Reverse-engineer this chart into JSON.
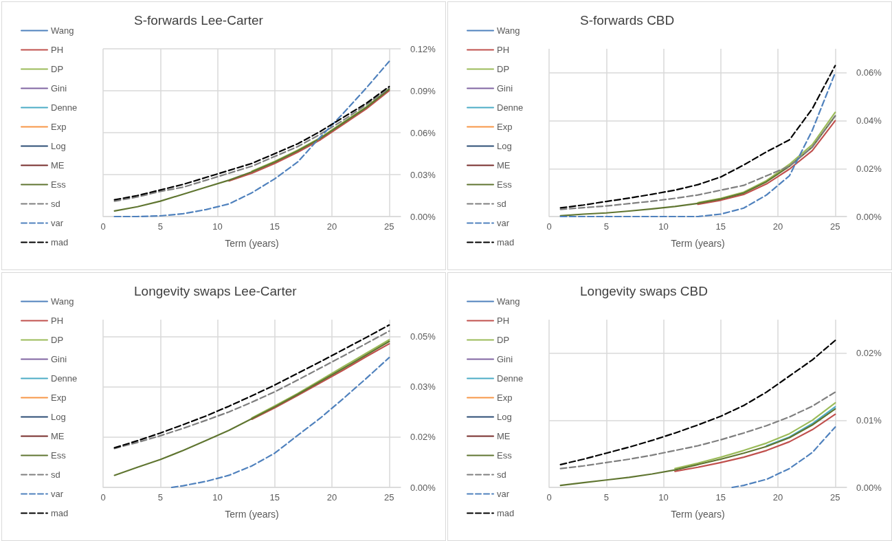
{
  "chart_data": [
    {
      "type": "line",
      "title": "S-forwards Lee-Carter",
      "xlabel": "Term (years)",
      "x": [
        1,
        3,
        5,
        7,
        9,
        11,
        13,
        15,
        17,
        19,
        21,
        23,
        25
      ],
      "xlim": [
        0,
        26
      ],
      "xticks": [
        0,
        5,
        10,
        15,
        20,
        25
      ],
      "ylim": [
        0,
        0.12
      ],
      "yticks": [
        {
          "value": 0,
          "label": "0.00%"
        },
        {
          "value": 0.03,
          "label": "0.03%"
        },
        {
          "value": 0.06,
          "label": "0.06%"
        },
        {
          "value": 0.09,
          "label": "0.09%"
        },
        {
          "value": 0.12,
          "label": "0.12%"
        }
      ],
      "grid": true,
      "legend": "left",
      "marker": "none",
      "line_style": "solid",
      "series": [
        {
          "name": "Wang",
          "color": "#4f81bd",
          "values": [
            null,
            null,
            null,
            null,
            null,
            null,
            null,
            null,
            null,
            null,
            null,
            null,
            null
          ]
        },
        {
          "name": "PH",
          "color": "#c0504d",
          "values": [
            null,
            null,
            null,
            null,
            null,
            0.0255,
            0.031,
            0.038,
            0.046,
            0.055,
            0.066,
            0.077,
            0.09
          ]
        },
        {
          "name": "DP",
          "color": "#9bbb59",
          "values": [
            null,
            null,
            null,
            null,
            null,
            null,
            0.0325,
            0.0395,
            0.0475,
            0.0565,
            0.0675,
            0.0785,
            0.0915
          ]
        },
        {
          "name": "Gini",
          "color": "#8064a2",
          "values": [
            null,
            null,
            null,
            null,
            null,
            null,
            null,
            null,
            null,
            null,
            null,
            null,
            null
          ]
        },
        {
          "name": "Denne",
          "color": "#4bacc6",
          "values": [
            null,
            null,
            null,
            null,
            null,
            null,
            null,
            null,
            null,
            null,
            null,
            null,
            null
          ]
        },
        {
          "name": "Exp",
          "color": "#f79646",
          "values": [
            null,
            null,
            null,
            null,
            null,
            null,
            null,
            null,
            null,
            null,
            null,
            null,
            null
          ]
        },
        {
          "name": "Log",
          "color": "#2c4d75",
          "values": [
            null,
            null,
            null,
            null,
            null,
            null,
            null,
            null,
            null,
            null,
            null,
            null,
            null
          ]
        },
        {
          "name": "ME",
          "color": "#772c2a",
          "values": [
            null,
            null,
            null,
            null,
            null,
            null,
            null,
            null,
            null,
            null,
            null,
            null,
            null
          ]
        },
        {
          "name": "Ess",
          "color": "#5f7530",
          "values": [
            0.004,
            0.007,
            0.011,
            0.016,
            0.021,
            0.026,
            0.032,
            0.039,
            0.047,
            0.056,
            0.067,
            0.078,
            0.091
          ]
        },
        {
          "name": "sd",
          "color": "#7f7f7f",
          "line_style": "dashed",
          "values": [
            0.011,
            0.014,
            0.018,
            0.021,
            0.026,
            0.031,
            0.036,
            0.043,
            0.05,
            0.059,
            0.069,
            0.08,
            0.092
          ]
        },
        {
          "name": "var",
          "color": "#4f81bd",
          "line_style": "dashed",
          "values": [
            0,
            0,
            0.0005,
            0.002,
            0.005,
            0.009,
            0.017,
            0.027,
            0.039,
            0.057,
            0.074,
            0.092,
            0.111
          ]
        },
        {
          "name": "mad",
          "color": "#000000",
          "line_style": "dashed",
          "values": [
            0.012,
            0.015,
            0.019,
            0.023,
            0.028,
            0.033,
            0.038,
            0.045,
            0.052,
            0.061,
            0.071,
            0.081,
            0.093
          ]
        }
      ]
    },
    {
      "type": "line",
      "title": "S-forwards CBD",
      "xlabel": "Term (years)",
      "x": [
        1,
        3,
        5,
        7,
        9,
        11,
        13,
        15,
        17,
        19,
        21,
        23,
        25
      ],
      "xlim": [
        0,
        26
      ],
      "xticks": [
        0,
        5,
        10,
        15,
        20,
        25
      ],
      "ylim": [
        0,
        0.07
      ],
      "yticks": [
        {
          "value": 0,
          "label": "0.00%"
        },
        {
          "value": 0.02,
          "label": "0.02%"
        },
        {
          "value": 0.04,
          "label": "0.04%"
        },
        {
          "value": 0.06,
          "label": "0.06%"
        }
      ],
      "grid": true,
      "legend": "left",
      "marker": "none",
      "line_style": "solid",
      "series": [
        {
          "name": "Wang",
          "color": "#4f81bd",
          "values": [
            null,
            null,
            null,
            null,
            null,
            null,
            null,
            null,
            null,
            null,
            null,
            null,
            null
          ]
        },
        {
          "name": "PH",
          "color": "#c0504d",
          "values": [
            null,
            null,
            null,
            null,
            null,
            null,
            0.0051,
            0.0068,
            0.0092,
            0.0136,
            0.0198,
            0.0275,
            0.04
          ]
        },
        {
          "name": "DP",
          "color": "#9bbb59",
          "values": [
            null,
            null,
            null,
            null,
            null,
            null,
            0.0058,
            0.0076,
            0.0102,
            0.015,
            0.0218,
            0.03,
            0.0435
          ]
        },
        {
          "name": "Gini",
          "color": "#8064a2",
          "values": [
            null,
            null,
            null,
            null,
            null,
            null,
            null,
            null,
            null,
            null,
            null,
            null,
            null
          ]
        },
        {
          "name": "Denne",
          "color": "#4bacc6",
          "values": [
            null,
            null,
            null,
            null,
            null,
            null,
            null,
            null,
            null,
            null,
            null,
            null,
            null
          ]
        },
        {
          "name": "Exp",
          "color": "#f79646",
          "values": [
            null,
            null,
            null,
            null,
            null,
            null,
            null,
            null,
            null,
            null,
            null,
            null,
            null
          ]
        },
        {
          "name": "Log",
          "color": "#2c4d75",
          "values": [
            null,
            null,
            null,
            null,
            null,
            null,
            null,
            null,
            null,
            null,
            null,
            null,
            null
          ]
        },
        {
          "name": "ME",
          "color": "#772c2a",
          "values": [
            null,
            null,
            null,
            null,
            null,
            null,
            null,
            null,
            null,
            null,
            null,
            null,
            null
          ]
        },
        {
          "name": "Ess",
          "color": "#5f7530",
          "values": [
            0.0003,
            0.001,
            0.0015,
            0.0023,
            0.0032,
            0.0042,
            0.0055,
            0.0073,
            0.0098,
            0.0145,
            0.021,
            0.029,
            0.042
          ]
        },
        {
          "name": "sd",
          "color": "#7f7f7f",
          "line_style": "dashed",
          "values": [
            0.003,
            0.0037,
            0.0044,
            0.0054,
            0.0064,
            0.0076,
            0.009,
            0.011,
            0.013,
            0.017,
            0.021,
            0.029,
            0.042
          ]
        },
        {
          "name": "var",
          "color": "#4f81bd",
          "line_style": "dashed",
          "values": [
            0,
            0,
            0,
            0,
            0,
            0,
            0,
            0.001,
            0.0035,
            0.009,
            0.017,
            0.036,
            0.06
          ]
        },
        {
          "name": "mad",
          "color": "#000000",
          "line_style": "dashed",
          "values": [
            0.0036,
            0.0048,
            0.0063,
            0.0077,
            0.0093,
            0.011,
            0.0133,
            0.0165,
            0.0215,
            0.027,
            0.032,
            0.045,
            0.063
          ]
        }
      ]
    },
    {
      "type": "line",
      "title": "Longevity swaps Lee-Carter",
      "xlabel": "Term (years)",
      "x": [
        1,
        3,
        5,
        7,
        9,
        11,
        13,
        15,
        17,
        19,
        21,
        23,
        25
      ],
      "xlim": [
        0,
        26
      ],
      "xticks": [
        0,
        5,
        10,
        15,
        20,
        25
      ],
      "ylim": [
        0,
        0.05
      ],
      "yticks": [
        {
          "value": 0,
          "label": "0.00%"
        },
        {
          "value": 0.015,
          "label": "0.02%"
        },
        {
          "value": 0.03,
          "label": "0.03%"
        },
        {
          "value": 0.045,
          "label": "0.05%"
        }
      ],
      "grid": true,
      "legend": "left",
      "marker": "none",
      "line_style": "solid",
      "series": [
        {
          "name": "Wang",
          "color": "#4f81bd",
          "values": [
            null,
            null,
            null,
            null,
            null,
            null,
            null,
            null,
            null,
            null,
            null,
            null,
            null
          ]
        },
        {
          "name": "PH",
          "color": "#c0504d",
          "values": [
            null,
            null,
            null,
            null,
            null,
            null,
            0.0203,
            0.0237,
            0.0274,
            0.0312,
            0.035,
            0.039,
            0.0428
          ]
        },
        {
          "name": "DP",
          "color": "#9bbb59",
          "values": [
            null,
            null,
            null,
            null,
            null,
            null,
            0.0207,
            0.0243,
            0.028,
            0.032,
            0.036,
            0.04,
            0.044
          ]
        },
        {
          "name": "Gini",
          "color": "#8064a2",
          "values": [
            null,
            null,
            null,
            null,
            null,
            null,
            null,
            null,
            null,
            null,
            null,
            null,
            null
          ]
        },
        {
          "name": "Denne",
          "color": "#4bacc6",
          "values": [
            null,
            null,
            null,
            null,
            null,
            null,
            null,
            null,
            null,
            null,
            null,
            null,
            null
          ]
        },
        {
          "name": "Exp",
          "color": "#f79646",
          "values": [
            null,
            null,
            null,
            null,
            null,
            null,
            null,
            null,
            null,
            null,
            null,
            null,
            null
          ]
        },
        {
          "name": "Log",
          "color": "#2c4d75",
          "values": [
            null,
            null,
            null,
            null,
            null,
            null,
            null,
            null,
            null,
            null,
            null,
            null,
            null
          ]
        },
        {
          "name": "ME",
          "color": "#772c2a",
          "values": [
            null,
            null,
            null,
            null,
            null,
            null,
            null,
            null,
            null,
            null,
            null,
            null,
            null
          ]
        },
        {
          "name": "Ess",
          "color": "#5f7530",
          "values": [
            0.0036,
            0.006,
            0.0083,
            0.011,
            0.014,
            0.017,
            0.0205,
            0.024,
            0.0277,
            0.0316,
            0.0355,
            0.0395,
            0.0435
          ]
        },
        {
          "name": "sd",
          "color": "#7f7f7f",
          "line_style": "dashed",
          "values": [
            0.0116,
            0.0134,
            0.0154,
            0.0176,
            0.02,
            0.0225,
            0.0254,
            0.0285,
            0.032,
            0.0356,
            0.0392,
            0.0429,
            0.0466
          ]
        },
        {
          "name": "var",
          "color": "#4f81bd",
          "line_style": "dashed",
          "x": [
            6,
            7,
            9,
            11,
            13,
            15,
            17,
            19,
            21,
            23,
            25
          ],
          "values": [
            0,
            0.0005,
            0.0018,
            0.0036,
            0.0064,
            0.0102,
            0.0155,
            0.0207,
            0.0265,
            0.0325,
            0.0387
          ]
        },
        {
          "name": "mad",
          "color": "#000000",
          "line_style": "dashed",
          "values": [
            0.0118,
            0.0139,
            0.0162,
            0.0187,
            0.0213,
            0.0242,
            0.0273,
            0.0305,
            0.034,
            0.0375,
            0.0411,
            0.0447,
            0.0484
          ]
        }
      ]
    },
    {
      "type": "line",
      "title": "Longevity swaps CBD",
      "xlabel": "Term (years)",
      "x": [
        1,
        3,
        5,
        7,
        9,
        11,
        13,
        15,
        17,
        19,
        21,
        23,
        25
      ],
      "xlim": [
        0,
        26
      ],
      "xticks": [
        0,
        5,
        10,
        15,
        20,
        25
      ],
      "ylim": [
        0,
        0.025
      ],
      "yticks": [
        {
          "value": 0,
          "label": "0.00%"
        },
        {
          "value": 0.01,
          "label": "0.01%"
        },
        {
          "value": 0.02,
          "label": "0.02%"
        }
      ],
      "grid": true,
      "legend": "left",
      "marker": "none",
      "line_style": "solid",
      "series": [
        {
          "name": "Wang",
          "color": "#4f81bd",
          "values": [
            null,
            null,
            null,
            null,
            null,
            null,
            null,
            null,
            null,
            null,
            null,
            null,
            null
          ]
        },
        {
          "name": "PH",
          "color": "#c0504d",
          "values": [
            null,
            null,
            null,
            null,
            null,
            0.0024,
            0.003,
            0.0037,
            0.0045,
            0.0055,
            0.0068,
            0.0086,
            0.0109
          ]
        },
        {
          "name": "DP",
          "color": "#9bbb59",
          "values": [
            null,
            null,
            null,
            null,
            null,
            0.0028,
            0.0036,
            0.0045,
            0.0055,
            0.0066,
            0.008,
            0.01,
            0.0126
          ]
        },
        {
          "name": "Gini",
          "color": "#8064a2",
          "values": [
            null,
            null,
            null,
            null,
            null,
            null,
            null,
            null,
            null,
            null,
            null,
            null,
            null
          ]
        },
        {
          "name": "Denne",
          "color": "#4bacc6",
          "values": [
            null,
            null,
            null,
            null,
            null,
            null,
            null,
            null,
            null,
            0.0062,
            0.0075,
            0.0095,
            0.012
          ]
        },
        {
          "name": "Exp",
          "color": "#f79646",
          "values": [
            null,
            null,
            null,
            null,
            null,
            null,
            null,
            null,
            null,
            null,
            null,
            null,
            null
          ]
        },
        {
          "name": "Log",
          "color": "#2c4d75",
          "values": [
            null,
            null,
            null,
            null,
            null,
            null,
            null,
            null,
            null,
            null,
            null,
            null,
            null
          ]
        },
        {
          "name": "ME",
          "color": "#772c2a",
          "values": [
            null,
            null,
            null,
            null,
            null,
            null,
            null,
            null,
            null,
            null,
            null,
            null,
            null
          ]
        },
        {
          "name": "Ess",
          "color": "#5f7530",
          "values": [
            0.0003,
            0.0007,
            0.0011,
            0.0015,
            0.002,
            0.0026,
            0.0034,
            0.0042,
            0.0051,
            0.0061,
            0.0074,
            0.0093,
            0.0117
          ]
        },
        {
          "name": "sd",
          "color": "#7f7f7f",
          "line_style": "dashed",
          "values": [
            0.0028,
            0.0032,
            0.0037,
            0.0042,
            0.0048,
            0.0055,
            0.0062,
            0.0071,
            0.0081,
            0.0092,
            0.0105,
            0.0121,
            0.0142
          ]
        },
        {
          "name": "var",
          "color": "#4f81bd",
          "line_style": "dashed",
          "x": [
            16,
            17,
            19,
            21,
            23,
            25
          ],
          "values": [
            0,
            0.0003,
            0.0012,
            0.0028,
            0.0052,
            0.009
          ]
        },
        {
          "name": "mad",
          "color": "#000000",
          "line_style": "dashed",
          "values": [
            0.0034,
            0.0042,
            0.0051,
            0.006,
            0.007,
            0.0081,
            0.0093,
            0.0106,
            0.0122,
            0.0142,
            0.0166,
            0.019,
            0.0219
          ]
        }
      ]
    }
  ]
}
